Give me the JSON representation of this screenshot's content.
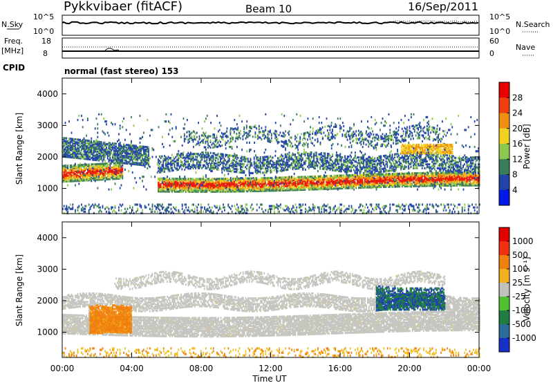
{
  "header": {
    "title": "Pykkvibaer (fitACF)",
    "beam": "Beam 10",
    "date": "16/Sep/2011",
    "program": "normal (fast stereo) 153"
  },
  "strips": {
    "nsky_label": "N.Sky",
    "nsearch_label": "N.Search",
    "freq_label_top": "Freq.",
    "freq_label_units": "[MHz]",
    "nave_label": "Nave",
    "cpid_label": "CPID",
    "noise_ticks": [
      "10^5",
      "10^0"
    ],
    "freq_ticks": [
      "18",
      "8"
    ],
    "nave_ticks": [
      "60",
      "0"
    ]
  },
  "chart_data": [
    {
      "type": "heatmap",
      "name": "power",
      "xlabel": "",
      "ylabel": "Slant Range [km]",
      "ylim": [
        200,
        4500
      ],
      "y_ticks": [
        "1000",
        "2000",
        "3000",
        "4000"
      ],
      "colorbar_label": "Power [dB]",
      "colorbar_ticks": [
        "28",
        "24",
        "20",
        "16",
        "12",
        "8",
        "4"
      ],
      "colorbar_colors": [
        "#0018e8",
        "#2244a8",
        "#3a7c58",
        "#8cc850",
        "#f0d020",
        "#f09010",
        "#f04010",
        "#e80000"
      ],
      "colors": {
        "low": "#2244a8",
        "midlow": "#3a7c58",
        "mid": "#8cc850",
        "midhigh": "#f0d020",
        "high": "#f09010",
        "max": "#e81808"
      }
    },
    {
      "type": "heatmap",
      "name": "velocity",
      "xlabel": "Time UT",
      "ylabel": "Slant Range [km]",
      "ylim": [
        200,
        4500
      ],
      "y_ticks": [
        "1000",
        "2000",
        "3000",
        "4000"
      ],
      "x_ticks": [
        "00:00",
        "04:00",
        "08:00",
        "12:00",
        "16:00",
        "20:00",
        "00:00"
      ],
      "colorbar_label": "Velocity [m s⁻¹]",
      "colorbar_ticks": [
        "1000",
        "500",
        "100",
        "25",
        "-25",
        "-100",
        "-500",
        "-1000"
      ],
      "colorbar_colors": [
        "#1830c8",
        "#2c6c9c",
        "#207c40",
        "#50c030",
        "#c0c0bc",
        "#f0b020",
        "#f08010",
        "#f03010",
        "#e00000"
      ],
      "colors": {
        "zero": "#c4c4c0",
        "neg": "#f08010",
        "pos": "#208040",
        "strong_pos": "#2040b0"
      }
    }
  ]
}
